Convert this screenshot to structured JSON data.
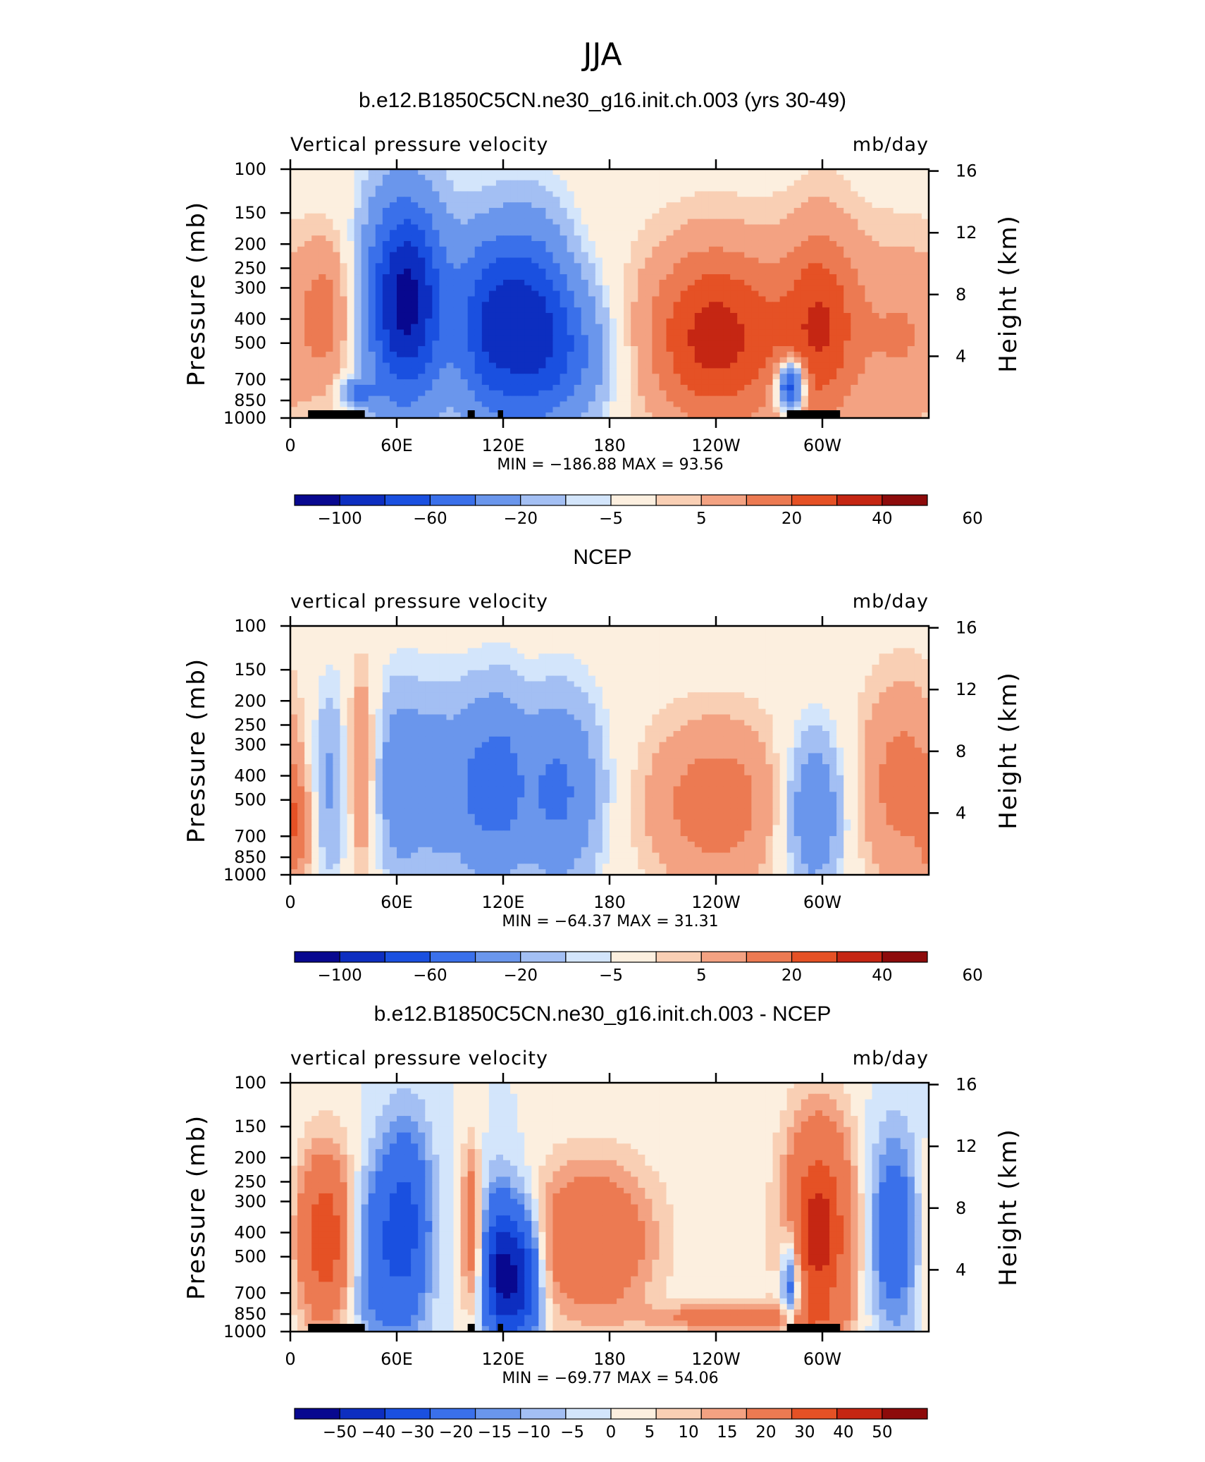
{
  "figure": {
    "title": "JJA"
  },
  "colors": {
    "palette": [
      "#08088f",
      "#0d2ec0",
      "#1a50e0",
      "#3a70ea",
      "#6a96ec",
      "#a3bff3",
      "#d3e5fb",
      "#fcefdf",
      "#f9cfb4",
      "#f3a282",
      "#ec7a52",
      "#e55125",
      "#c52613",
      "#8d0b0b"
    ],
    "land": "#000000"
  },
  "panels": [
    {
      "title": "b.e12.B1850C5CN.ne30_g16.init.ch.003 (yrs 30-49)",
      "left_label": "Vertical pressure velocity",
      "right_label": "mb/day",
      "y_left_label": "Pressure (mb)",
      "y_right_label": "Height (km)",
      "stats": "MIN = −186.88   MAX =   93.56",
      "colorbar_labels": [
        "−100",
        "−60",
        "−20",
        "−5",
        "5",
        "20",
        "40",
        "60"
      ]
    },
    {
      "title": "NCEP",
      "left_label": "vertical pressure velocity",
      "right_label": "mb/day",
      "y_left_label": "Pressure (mb)",
      "y_right_label": "Height (km)",
      "stats": "MIN = −64.37   MAX =   31.31",
      "colorbar_labels": [
        "−100",
        "−60",
        "−20",
        "−5",
        "5",
        "20",
        "40",
        "60"
      ]
    },
    {
      "title": "b.e12.B1850C5CN.ne30_g16.init.ch.003 - NCEP",
      "left_label": "vertical pressure velocity",
      "right_label": "mb/day",
      "y_left_label": "Pressure (mb)",
      "y_right_label": "Height (km)",
      "stats": "MIN = −69.77   MAX =   54.06",
      "colorbar_labels": [
        "−50",
        "−40",
        "−30",
        "−20",
        "−15",
        "−10",
        "−5",
        "0",
        "5",
        "10",
        "15",
        "20",
        "30",
        "40",
        "50"
      ]
    }
  ],
  "chart_data": [
    {
      "type": "heatmap",
      "title": "b.e12.B1850C5CN.ne30_g16.init.ch.003 (yrs 30-49)",
      "variable": "Vertical pressure velocity",
      "units": "mb/day",
      "x_ticks": [
        "0",
        "60E",
        "120E",
        "180",
        "120W",
        "60W"
      ],
      "x_tick_lon": [
        0,
        60,
        120,
        180,
        240,
        300
      ],
      "x_range": [
        0,
        360
      ],
      "y_ticks": [
        "100",
        "150",
        "200",
        "250",
        "300",
        "400",
        "500",
        "700",
        "850",
        "1000"
      ],
      "y_tick_p": [
        100,
        150,
        200,
        250,
        300,
        400,
        500,
        700,
        850,
        1000
      ],
      "y_right_ticks": [
        "4",
        "8",
        "12",
        "16"
      ],
      "y_right_km": [
        4,
        8,
        12,
        16
      ],
      "levels": [
        -100,
        -80,
        -60,
        -40,
        -20,
        -10,
        -5,
        5,
        10,
        20,
        30,
        40,
        50,
        60
      ],
      "colorbar_labels": [
        "−100",
        "−60",
        "−20",
        "−5",
        "5",
        "20",
        "40",
        "60"
      ],
      "min": -186.88,
      "max": 93.56,
      "features": [
        {
          "lon": 22,
          "p": 380,
          "dx": 12,
          "dp": 200,
          "value": 25
        },
        {
          "lon": 38,
          "p": 790,
          "dx": 7,
          "dp": 70,
          "value": -40
        },
        {
          "lon": 65,
          "p": 340,
          "dx": 16,
          "dp": 230,
          "value": -110
        },
        {
          "lon": 110,
          "p": 430,
          "dx": 13,
          "dp": 260,
          "value": -60
        },
        {
          "lon": 135,
          "p": 420,
          "dx": 16,
          "dp": 270,
          "value": -80
        },
        {
          "lon": 160,
          "p": 550,
          "dx": 16,
          "dp": 260,
          "value": -35
        },
        {
          "lon": 240,
          "p": 470,
          "dx": 30,
          "dp": 300,
          "value": 45
        },
        {
          "lon": 282,
          "p": 750,
          "dx": 5,
          "dp": 120,
          "value": -90
        },
        {
          "lon": 300,
          "p": 420,
          "dx": 16,
          "dp": 300,
          "value": 35
        },
        {
          "lon": 345,
          "p": 470,
          "dx": 18,
          "dp": 320,
          "value": 20
        }
      ],
      "land_segments": [
        [
          10,
          42
        ],
        [
          100,
          104
        ],
        [
          117,
          120
        ],
        [
          280,
          310
        ]
      ]
    },
    {
      "type": "heatmap",
      "title": "NCEP",
      "variable": "vertical pressure velocity",
      "units": "mb/day",
      "x_ticks": [
        "0",
        "60E",
        "120E",
        "180",
        "120W",
        "60W"
      ],
      "x_tick_lon": [
        0,
        60,
        120,
        180,
        240,
        300
      ],
      "x_range": [
        0,
        360
      ],
      "y_ticks": [
        "100",
        "150",
        "200",
        "250",
        "300",
        "400",
        "500",
        "700",
        "850",
        "1000"
      ],
      "y_tick_p": [
        100,
        150,
        200,
        250,
        300,
        400,
        500,
        700,
        850,
        1000
      ],
      "y_right_ticks": [
        "4",
        "8",
        "12",
        "16"
      ],
      "y_right_km": [
        4,
        8,
        12,
        16
      ],
      "levels": [
        -100,
        -80,
        -60,
        -40,
        -20,
        -10,
        -5,
        5,
        10,
        20,
        30,
        40,
        50,
        60
      ],
      "colorbar_labels": [
        "−100",
        "−60",
        "−20",
        "−5",
        "5",
        "20",
        "40",
        "60"
      ],
      "min": -64.37,
      "max": 31.31,
      "features": [
        {
          "lon": 4,
          "p": 650,
          "dx": 6,
          "dp": 250,
          "value": 20
        },
        {
          "lon": 22,
          "p": 430,
          "dx": 8,
          "dp": 280,
          "value": -25
        },
        {
          "lon": 40,
          "p": 380,
          "dx": 6,
          "dp": 250,
          "value": 25
        },
        {
          "lon": 62,
          "p": 420,
          "dx": 10,
          "dp": 260,
          "value": -35
        },
        {
          "lon": 85,
          "p": 430,
          "dx": 10,
          "dp": 260,
          "value": -30
        },
        {
          "lon": 105,
          "p": 450,
          "dx": 8,
          "dp": 280,
          "value": -35
        },
        {
          "lon": 120,
          "p": 420,
          "dx": 8,
          "dp": 250,
          "value": -35
        },
        {
          "lon": 150,
          "p": 460,
          "dx": 18,
          "dp": 280,
          "value": -45
        },
        {
          "lon": 240,
          "p": 520,
          "dx": 30,
          "dp": 300,
          "value": 27
        },
        {
          "lon": 295,
          "p": 560,
          "dx": 12,
          "dp": 300,
          "value": -40
        },
        {
          "lon": 345,
          "p": 430,
          "dx": 18,
          "dp": 300,
          "value": 25
        }
      ],
      "land_segments": []
    },
    {
      "type": "heatmap",
      "title": "b.e12.B1850C5CN.ne30_g16.init.ch.003 - NCEP",
      "variable": "vertical pressure velocity",
      "units": "mb/day",
      "x_ticks": [
        "0",
        "60E",
        "120E",
        "180",
        "120W",
        "60W"
      ],
      "x_tick_lon": [
        0,
        60,
        120,
        180,
        240,
        300
      ],
      "x_range": [
        0,
        360
      ],
      "y_ticks": [
        "100",
        "150",
        "200",
        "250",
        "300",
        "400",
        "500",
        "700",
        "850",
        "1000"
      ],
      "y_tick_p": [
        100,
        150,
        200,
        250,
        300,
        400,
        500,
        700,
        850,
        1000
      ],
      "y_right_ticks": [
        "4",
        "8",
        "12",
        "16"
      ],
      "y_right_km": [
        4,
        8,
        12,
        16
      ],
      "levels": [
        -50,
        -40,
        -30,
        -20,
        -15,
        -10,
        -5,
        0,
        5,
        10,
        15,
        20,
        30,
        40,
        50
      ],
      "colorbar_labels": [
        "−50",
        "−40",
        "−30",
        "−20",
        "−15",
        "−10",
        "−5",
        "0",
        "5",
        "10",
        "15",
        "20",
        "30",
        "40",
        "50"
      ],
      "min": -69.77,
      "max": 54.06,
      "features": [
        {
          "lon": 20,
          "p": 420,
          "dx": 12,
          "dp": 240,
          "value": 40
        },
        {
          "lon": 45,
          "p": 500,
          "dx": 10,
          "dp": 300,
          "value": -20
        },
        {
          "lon": 65,
          "p": 380,
          "dx": 10,
          "dp": 250,
          "value": -35
        },
        {
          "lon": 102,
          "p": 380,
          "dx": 4,
          "dp": 200,
          "value": 25
        },
        {
          "lon": 118,
          "p": 570,
          "dx": 7,
          "dp": 290,
          "value": -50
        },
        {
          "lon": 132,
          "p": 600,
          "dx": 7,
          "dp": 280,
          "value": -45
        },
        {
          "lon": 170,
          "p": 430,
          "dx": 25,
          "dp": 220,
          "value": 30
        },
        {
          "lon": 250,
          "p": 880,
          "dx": 30,
          "dp": 80,
          "value": 25
        },
        {
          "lon": 282,
          "p": 640,
          "dx": 4,
          "dp": 220,
          "value": -35
        },
        {
          "lon": 298,
          "p": 400,
          "dx": 14,
          "dp": 300,
          "value": 45
        },
        {
          "lon": 340,
          "p": 400,
          "dx": 10,
          "dp": 260,
          "value": -25
        }
      ],
      "land_segments": [
        [
          10,
          42
        ],
        [
          100,
          104
        ],
        [
          117,
          120
        ],
        [
          280,
          310
        ]
      ]
    }
  ]
}
